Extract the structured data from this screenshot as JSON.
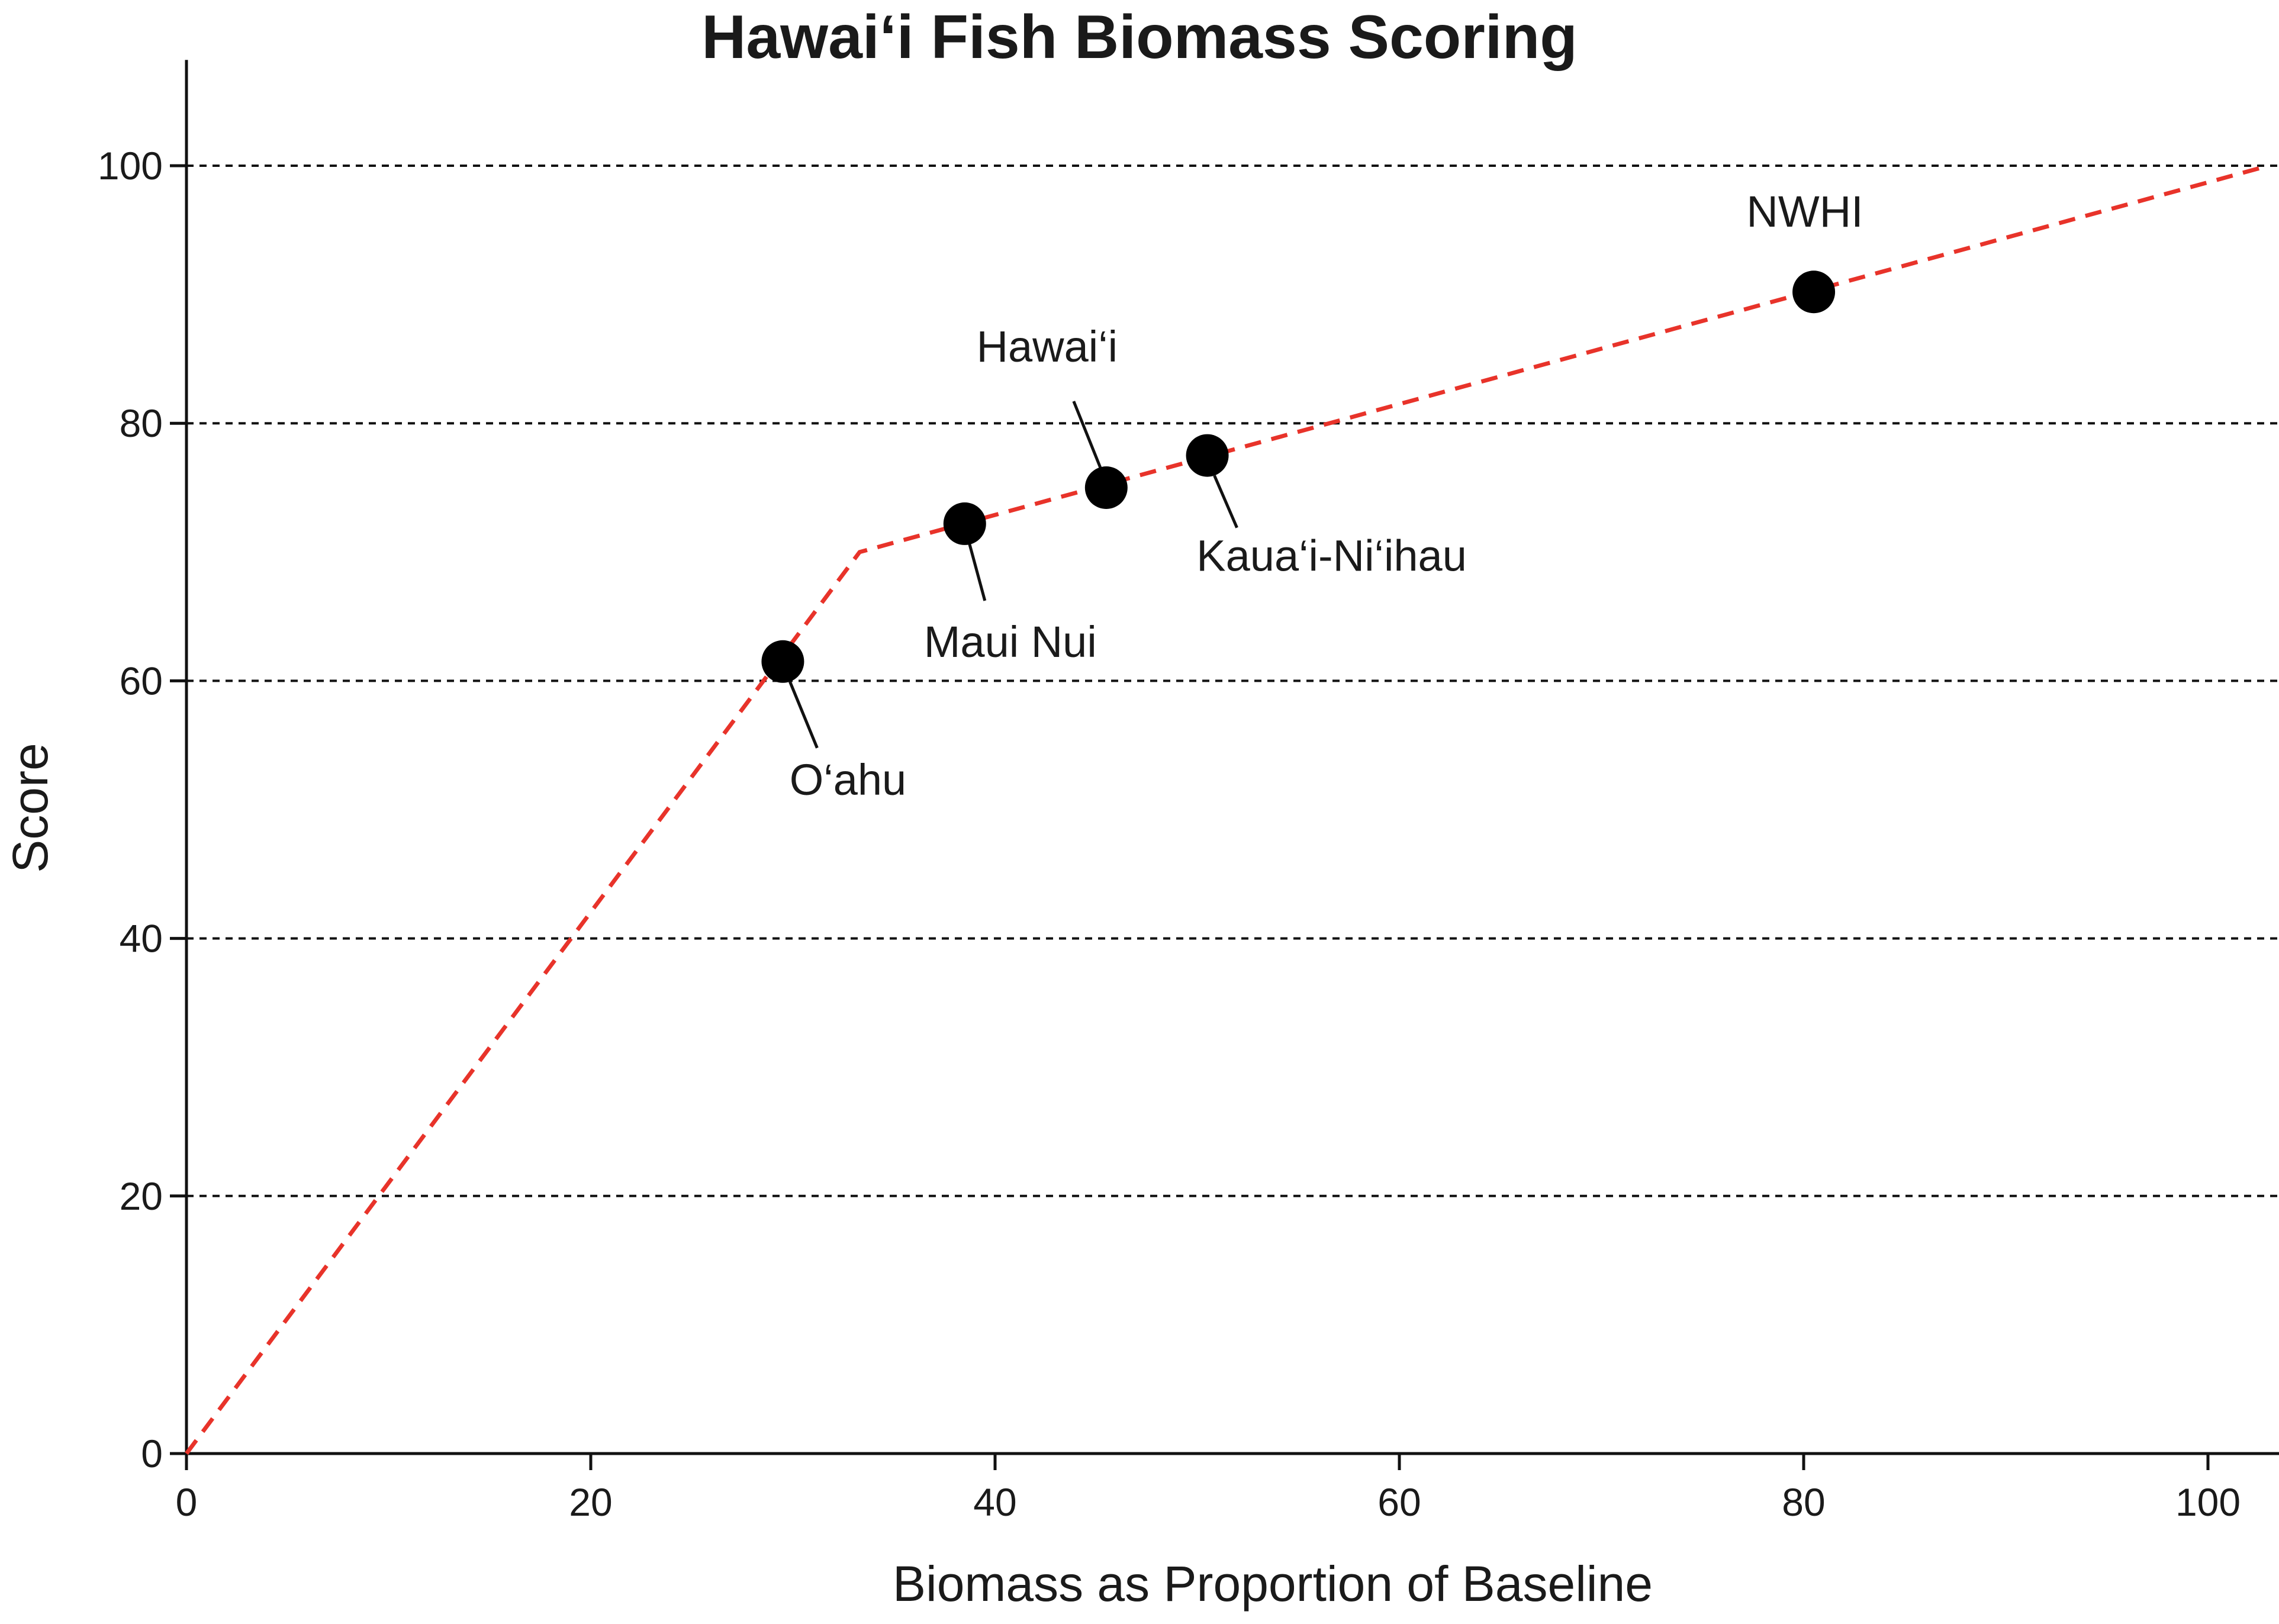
{
  "chart_data": {
    "type": "scatter",
    "title": "Hawai‘i Fish Biomass Scoring",
    "xlabel": "Biomass as Proportion of Baseline",
    "ylabel": "Score",
    "xlim": [
      0,
      104
    ],
    "ylim": [
      0,
      105
    ],
    "x_ticks": [
      0,
      20,
      40,
      60,
      80,
      100
    ],
    "y_ticks": [
      0,
      20,
      40,
      60,
      80,
      100
    ],
    "grid": "horizontal dashed lines at y ticks",
    "reference_line": {
      "style": "dashed",
      "color": "#e8332a",
      "points": [
        [
          0,
          0
        ],
        [
          33.3,
          70
        ],
        [
          103,
          100
        ]
      ]
    },
    "points": [
      {
        "label": "O‘ahu",
        "x": 29.5,
        "y": 61.5
      },
      {
        "label": "Maui Nui",
        "x": 38.5,
        "y": 72.2
      },
      {
        "label": "Hawai‘i",
        "x": 45.5,
        "y": 75.0
      },
      {
        "label": "Kaua‘i-Ni‘ihau",
        "x": 50.5,
        "y": 77.5
      },
      {
        "label": "NWHI",
        "x": 80.5,
        "y": 90.2
      }
    ],
    "point_color": "#000000",
    "grid_color": "#111111"
  }
}
